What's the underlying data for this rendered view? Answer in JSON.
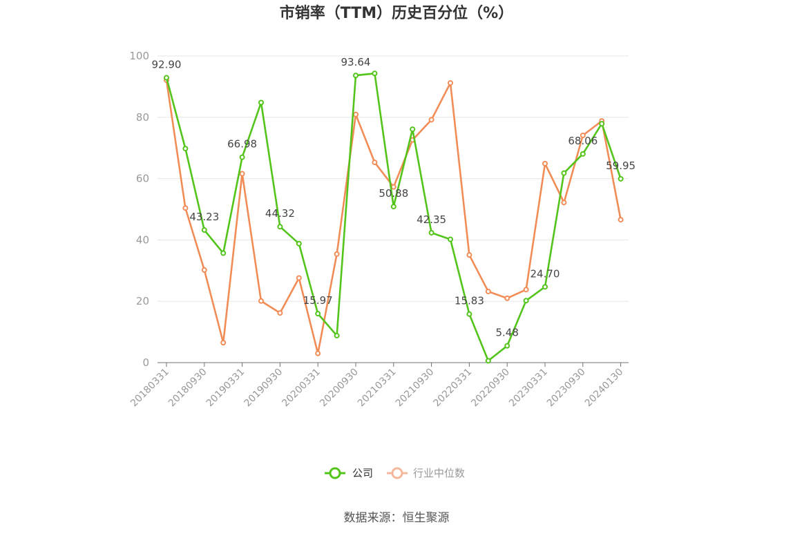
{
  "chart_data": {
    "type": "line",
    "title": "市销率（TTM）历史百分位（%）",
    "ylim": [
      0,
      100
    ],
    "y_ticks": [
      0,
      20,
      40,
      60,
      80,
      100
    ],
    "x_tick_labels": [
      "20180331",
      "20180930",
      "20190331",
      "20190930",
      "20200331",
      "20200930",
      "20210331",
      "20210930",
      "20220331",
      "20220930",
      "20230331",
      "20230930",
      "20240130"
    ],
    "x": [
      "20180331",
      "20180630",
      "20180930",
      "20181231",
      "20190331",
      "20190630",
      "20190930",
      "20191231",
      "20200331",
      "20200630",
      "20200930",
      "20201231",
      "20210331",
      "20210630",
      "20210930",
      "20211231",
      "20220331",
      "20220630",
      "20220930",
      "20221231",
      "20230331",
      "20230630",
      "20230930",
      "20231231",
      "20240130"
    ],
    "series": [
      {
        "name": "公司",
        "color": "#52c41a",
        "values": [
          92.9,
          69.8,
          43.23,
          35.7,
          66.98,
          84.8,
          44.32,
          38.8,
          15.97,
          8.8,
          93.64,
          94.3,
          50.88,
          76.1,
          42.35,
          40.2,
          15.83,
          0.6,
          5.48,
          20.2,
          24.7,
          61.8,
          68.06,
          77.9,
          59.95
        ],
        "data_labels": [
          "92.90",
          "",
          "43.23",
          "",
          "66.98",
          "",
          "44.32",
          "",
          "15.97",
          "",
          "93.64",
          "",
          "50.88",
          "",
          "42.35",
          "",
          "15.83",
          "",
          "5.48",
          "",
          "24.70",
          "",
          "68.06",
          "",
          "59.95"
        ]
      },
      {
        "name": "行业中位数",
        "color": "#f28c56",
        "values": [
          92.1,
          50.4,
          30.2,
          6.5,
          61.6,
          20.1,
          16.2,
          27.6,
          3.0,
          35.4,
          80.9,
          65.3,
          57.3,
          72.6,
          79.2,
          91.2,
          35.1,
          23.2,
          21.0,
          23.8,
          64.9,
          52.2,
          74.1,
          78.8,
          46.6
        ]
      }
    ],
    "grid": true,
    "legend_position": "bottom-center",
    "source_note": "数据来源：恒生聚源"
  }
}
